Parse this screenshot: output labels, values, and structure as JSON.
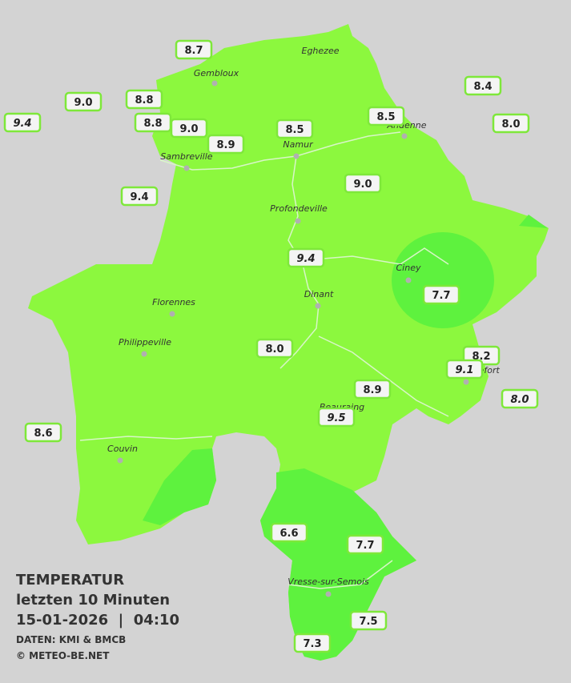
{
  "legend": {
    "title": "TEMPERATUR",
    "subtitle": "letzten 10 Minuten",
    "timestamp": "15-01-2026  |  04:10",
    "source": "DATEN: KMI & BMCB",
    "credit": "© METEO-BE.NET"
  },
  "cities": [
    "Eghezee",
    "Gembloux",
    "Andenne",
    "Namur",
    "Sambreville",
    "Profondeville",
    "Ciney",
    "Florennes",
    "Dinant",
    "Philippeville",
    "Rochefort",
    "Beauraing",
    "Couvin",
    "Vresse-sur-Semois"
  ],
  "stations": [
    "8.7",
    "9.0",
    "8.8",
    "8.4",
    "9.4",
    "8.8",
    "9.0",
    "8.5",
    "8.5",
    "8.0",
    "8.9",
    "9.0",
    "9.4",
    "9.4",
    "7.7",
    "8.0",
    "8.2",
    "9.1",
    "8.9",
    "8.0",
    "9.5",
    "8.6",
    "6.6",
    "7.7",
    "7.5",
    "7.3"
  ]
}
